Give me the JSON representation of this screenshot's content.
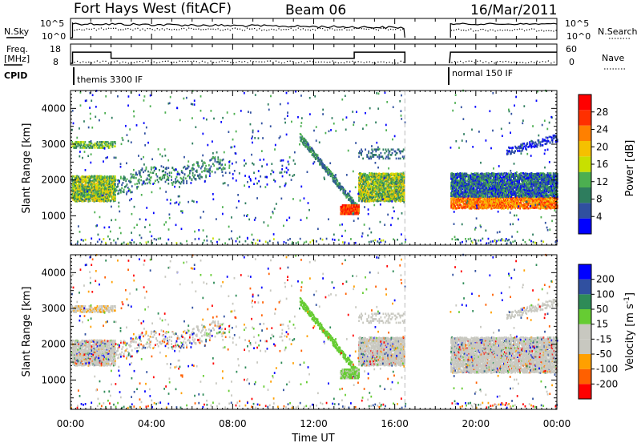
{
  "header": {
    "station": "Fort Hays West (fitACF)",
    "beam": "Beam 06",
    "date": "16/Mar/2011"
  },
  "summary_panels": {
    "nsky_label": "N.Sky",
    "nsky_ticks": [
      "10^5",
      "10^0"
    ],
    "nsearch_label": "N.Search",
    "freq_label_line1": "Freq.",
    "freq_label_line2": "[MHz]",
    "freq_ticks": [
      "18",
      "8"
    ],
    "nave_label": "Nave",
    "nave_ticks": [
      "60",
      "0"
    ],
    "cpid_label": "CPID",
    "cpid_segments": [
      "themis 3300 IF",
      "normal 150 IF"
    ]
  },
  "colors": {
    "power_scale": [
      "#0000ff",
      "#3050a0",
      "#2e7d5e",
      "#4caf50",
      "#c8e000",
      "#f5c000",
      "#ff8000",
      "#ff3000",
      "#ff0000"
    ],
    "velocity_scale": [
      "#ff0000",
      "#ff6000",
      "#ffa000",
      "#c8c8c0",
      "#c8c8c0",
      "#66cc33",
      "#2e8b57",
      "#3050a0",
      "#0000ff"
    ],
    "gap_marker": "#bbbbbb"
  },
  "chart_data": [
    {
      "type": "heatmap",
      "name": "power",
      "ylabel": "Slant Range [km]",
      "yticks": [
        "1000",
        "2000",
        "3000",
        "4000"
      ],
      "ylim": [
        180,
        4500
      ],
      "colorbar_label": "Power [dB]",
      "colorbar_ticks": [
        "4",
        "8",
        "12",
        "16",
        "20",
        "24",
        "28"
      ],
      "clim": [
        0,
        30
      ]
    },
    {
      "type": "heatmap",
      "name": "velocity",
      "ylabel": "Slant Range [km]",
      "yticks": [
        "1000",
        "2000",
        "3000",
        "4000"
      ],
      "ylim": [
        180,
        4500
      ],
      "colorbar_label": "Velocity [m s",
      "colorbar_label_sup": "-1",
      "colorbar_label_end": "]",
      "colorbar_ticks": [
        "200",
        "100",
        "50",
        "15",
        "-15",
        "-50",
        "-100",
        "-200"
      ],
      "clim": [
        -250,
        250
      ]
    }
  ],
  "xaxis": {
    "label": "Time UT",
    "ticks": [
      "00:00",
      "04:00",
      "08:00",
      "12:00",
      "16:00",
      "20:00",
      "00:00"
    ],
    "data_gap_hours": [
      16.5,
      18.7
    ]
  }
}
